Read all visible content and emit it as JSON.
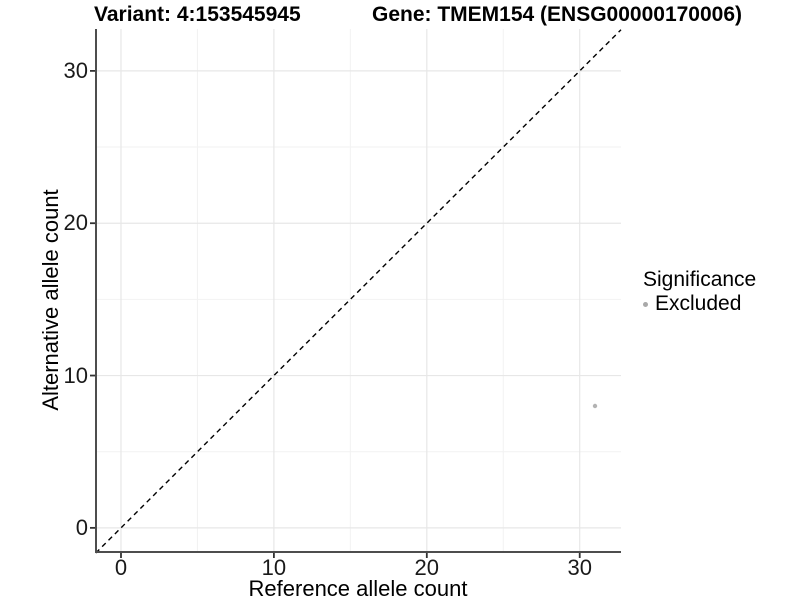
{
  "titles": {
    "variant": "Variant: 4:153545945",
    "gene": "Gene: TMEM154 (ENSG00000170006)"
  },
  "axes": {
    "x": {
      "label": "Reference allele count"
    },
    "y": {
      "label": "Alternative allele count"
    }
  },
  "legend": {
    "title": "Significance",
    "items": [
      {
        "label": "Excluded",
        "key_color": "#a9a9a9"
      }
    ]
  },
  "chart_data": {
    "type": "scatter",
    "title": "Variant: 4:153545945  /  Gene: TMEM154 (ENSG00000170006)",
    "xlabel": "Reference allele count",
    "ylabel": "Alternative allele count",
    "xlim": [
      -1.7,
      32.7
    ],
    "ylim": [
      -1.65,
      32.75
    ],
    "x_ticks": [
      0,
      10,
      20,
      30
    ],
    "y_ticks": [
      0,
      10,
      20,
      30
    ],
    "x_minor_ticks": [
      5,
      15,
      25
    ],
    "y_minor_ticks": [
      5,
      15,
      25
    ],
    "grid": true,
    "legend_position": "right",
    "points": [
      {
        "x": 31,
        "y": 8,
        "series": "Excluded",
        "color": "#b3b3b3",
        "radius": 2.2
      }
    ],
    "reference_line": {
      "kind": "identity",
      "slope": 1,
      "intercept": 0,
      "style": "dashed",
      "color": "#000000"
    },
    "style": {
      "grid_major_color": "#e7e7e7",
      "grid_minor_color": "#f2f2f2",
      "axis_line_color": "#4d4d4d",
      "tick_color": "#333333"
    }
  }
}
